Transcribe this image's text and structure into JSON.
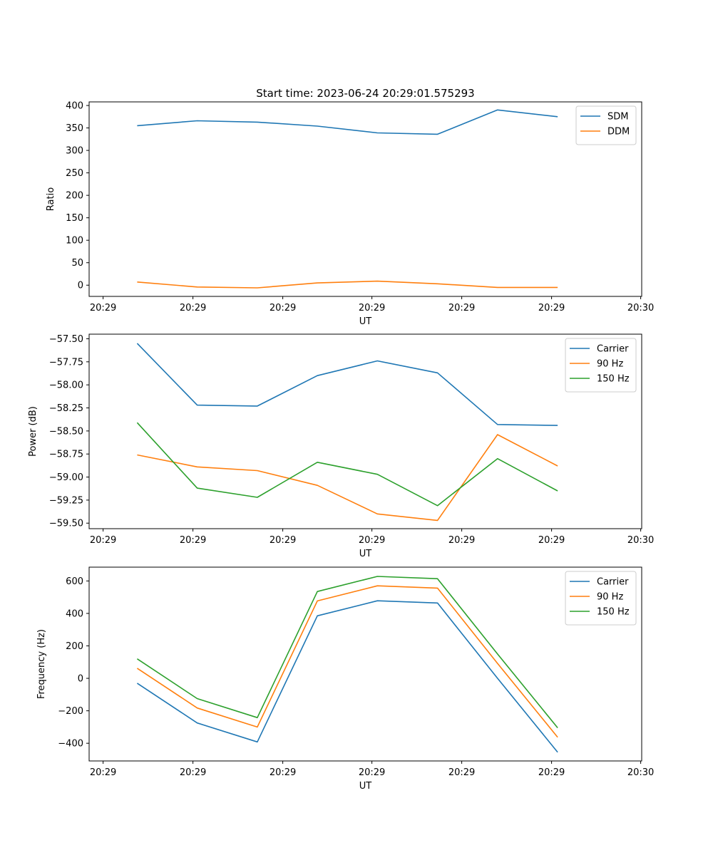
{
  "title": "Start time: 2023-06-24 20:29:01.575293",
  "chart_data": [
    {
      "type": "line",
      "xlabel": "UT",
      "ylabel": "Ratio",
      "x": [
        "20:29:01.6",
        "20:29:02.6",
        "20:29:03.6",
        "20:29:04.6",
        "20:29:05.6",
        "20:29:06.6",
        "20:29:07.6",
        "20:29:08.6"
      ],
      "xlim": [
        "20:29:00.8",
        "20:29:10.0"
      ],
      "xticks": [
        "20:29",
        "20:29",
        "20:29",
        "20:29",
        "20:29",
        "20:29",
        "20:30"
      ],
      "ylim": [
        -25,
        408
      ],
      "yticks": [
        0,
        50,
        100,
        150,
        200,
        250,
        300,
        350,
        400
      ],
      "legend_position": "top-right",
      "series": [
        {
          "name": "SDM",
          "color": "#1f77b4",
          "values": [
            355,
            366,
            363,
            354,
            339,
            336,
            390,
            375
          ]
        },
        {
          "name": "DDM",
          "color": "#ff7f0e",
          "values": [
            7,
            -4,
            -6,
            5,
            9,
            3,
            -5,
            -5
          ]
        }
      ]
    },
    {
      "type": "line",
      "xlabel": "UT",
      "ylabel": "Power (dB)",
      "x": [
        "20:29:01.6",
        "20:29:02.6",
        "20:29:03.6",
        "20:29:04.6",
        "20:29:05.6",
        "20:29:06.6",
        "20:29:07.6",
        "20:29:08.6"
      ],
      "xlim": [
        "20:29:00.8",
        "20:29:10.0"
      ],
      "xticks": [
        "20:29",
        "20:29",
        "20:29",
        "20:29",
        "20:29",
        "20:29",
        "20:30"
      ],
      "ylim": [
        -59.56,
        -57.45
      ],
      "yticks": [
        "−57.50",
        "−57.75",
        "−58.00",
        "−58.25",
        "−58.50",
        "−58.75",
        "−59.00",
        "−59.25",
        "−59.50"
      ],
      "legend_position": "top-right",
      "series": [
        {
          "name": "Carrier",
          "color": "#1f77b4",
          "values": [
            -57.55,
            -58.22,
            -58.23,
            -57.9,
            -57.74,
            -57.87,
            -58.43,
            -58.44
          ]
        },
        {
          "name": "90 Hz",
          "color": "#ff7f0e",
          "values": [
            -58.76,
            -58.89,
            -58.93,
            -59.09,
            -59.4,
            -59.47,
            -58.54,
            -58.88
          ]
        },
        {
          "name": "150 Hz",
          "color": "#2ca02c",
          "values": [
            -58.41,
            -59.12,
            -59.22,
            -58.84,
            -58.97,
            -59.31,
            -58.8,
            -59.15
          ]
        }
      ]
    },
    {
      "type": "line",
      "xlabel": "UT",
      "ylabel": "Frequency (Hz)",
      "x": [
        "20:29:01.6",
        "20:29:02.6",
        "20:29:03.6",
        "20:29:04.6",
        "20:29:05.6",
        "20:29:06.6",
        "20:29:07.6",
        "20:29:08.6"
      ],
      "xlim": [
        "20:29:00.8",
        "20:29:10.0"
      ],
      "xticks": [
        "20:29",
        "20:29",
        "20:29",
        "20:29",
        "20:29",
        "20:29",
        "20:30"
      ],
      "ylim": [
        -509,
        685
      ],
      "yticks": [
        "−400",
        "−200",
        "0",
        "200",
        "400",
        "600"
      ],
      "legend_position": "top-right",
      "series": [
        {
          "name": "Carrier",
          "color": "#1f77b4",
          "values": [
            -30,
            -275,
            -392,
            385,
            478,
            464,
            0,
            -455
          ]
        },
        {
          "name": "90 Hz",
          "color": "#ff7f0e",
          "values": [
            62,
            -183,
            -300,
            477,
            570,
            556,
            92,
            -363
          ]
        },
        {
          "name": "150 Hz",
          "color": "#2ca02c",
          "values": [
            120,
            -125,
            -242,
            535,
            628,
            614,
            150,
            -305
          ]
        }
      ]
    }
  ]
}
